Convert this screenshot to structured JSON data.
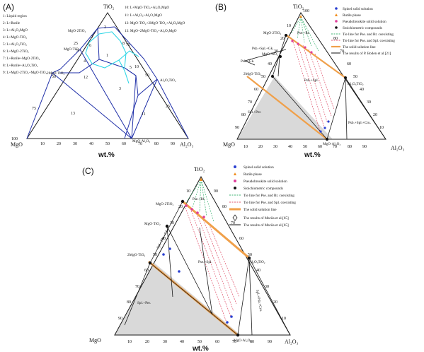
{
  "panels": {
    "a": {
      "label": "(A)",
      "vertices": {
        "top": "TiO₂",
        "left": "MgO",
        "right": "Al₂O₃"
      },
      "axis_unit": "wt.%",
      "bottom_ticks": [
        "10",
        "20",
        "30",
        "40",
        "50",
        "60",
        "70",
        "80",
        "90"
      ],
      "left_ticks": [
        "25",
        "50",
        "75",
        "100"
      ],
      "right_ticks": [
        "25",
        "50",
        "75"
      ],
      "legend_left": [
        "1: Liquid region",
        "2: L+Rutile",
        "3: L+Al₂O₃MgO",
        "4: L+MgO·TiO₂",
        "5: L+Al₂O₃TiO₂",
        "6: L+MgO·2TiO₂",
        "7: L+Rutile+MgO·2TiO₂",
        "8: L+Rutile+Al₂O₃TiO₂",
        "9: L+MgO·2TiO₂+MgO·TiO₂"
      ],
      "legend_right": [
        "10: L+MgO·TiO₂+Al₂O₃MgO",
        "11: L+Al₂O₃+Al₂O₃MgO",
        "12: MgO·TiO₂+2MgO·TiO₂+Al₂O₃MgO",
        "13: MgO+2MgO·TiO₂+Al₂O₃MgO"
      ],
      "region_numbers": [
        "1",
        "2",
        "3",
        "4",
        "5",
        "6",
        "7",
        "8",
        "9",
        "10",
        "11",
        "12",
        "13"
      ],
      "compound_labels": [
        "MgO·2TiO₂",
        "MgO·TiO₂",
        "2MgO·TiO₂",
        "Al₂O₃TiO₂",
        "MgO·Al₂O₃"
      ]
    },
    "b": {
      "label": "(B)",
      "vertices": {
        "top": "TiO₂",
        "left": "MgO",
        "right": "Al₂O₃"
      },
      "axis_unit": "wt.%",
      "top_tick": "100",
      "bottom_ticks": [
        "10",
        "20",
        "30",
        "40",
        "50",
        "60",
        "70",
        "80",
        "90"
      ],
      "left_ticks": [
        "10",
        "20",
        "30",
        "40",
        "50",
        "60",
        "70",
        "80",
        "90"
      ],
      "right_ticks": [
        "10",
        "20",
        "30",
        "40",
        "50",
        "60",
        "70",
        "80"
      ],
      "legend": [
        "Spinel solid solution",
        "Rutile phase",
        "Pseudobrookite solid solution",
        "Stoichiometric compounds",
        "Tie line for Pse. and Rt. coexisting",
        "Tie line for Pse. and Spl. coexisting",
        "The solid solution line",
        "The results of P. Boden et al.[21]"
      ],
      "regions": [
        "Pse.+Rt.",
        "Psb.+Spl.+Gk.",
        "Psb.+Gk.",
        "Psb.+Spl.",
        "Spl.+Per.",
        "Psb.+Spl.+Cru."
      ],
      "compound_labels": [
        "MgO·2TiO₂",
        "MgO·TiO₂",
        "2MgO·TiO₂",
        "Al₂O₃TiO₂",
        "MgO·Al₂O₃"
      ]
    },
    "c": {
      "label": "(C)",
      "vertices": {
        "top": "TiO₂",
        "left": "MgO",
        "right": "Al₂O₃"
      },
      "axis_unit": "wt.%",
      "bottom_ticks": [
        "10",
        "20",
        "30",
        "40",
        "50",
        "60",
        "70",
        "80",
        "90"
      ],
      "left_ticks": [
        "10",
        "20",
        "30",
        "40",
        "50",
        "60",
        "70",
        "80",
        "90"
      ],
      "right_ticks": [
        "10",
        "20",
        "30",
        "40",
        "50",
        "60",
        "70",
        "80",
        "90"
      ],
      "legend": [
        "Spinel solid solution",
        "Rutile phase",
        "Pseudobrookite solid solution",
        "Stoichiometric compounds",
        "Tie line for Pse. and Rt. coexisting",
        "Tie line for Pse. and Spl. coexisting",
        "The solid solution line",
        "The results of Mariia et al.[65]",
        "The results of Mariia et al.[65]"
      ],
      "regions": [
        "Pse.+Rt.",
        "Spl.+Pse.+Gk.",
        "Pse.+Spl.",
        "Spl.+Per.",
        "Spl.+Psb.+Cru."
      ],
      "compound_labels": [
        "MgO·2TiO₂",
        "MgO·TiO₂",
        "2MgO·TiO₂",
        "Al₂O₃TiO₂",
        "MgO·Al₂O₃"
      ]
    }
  },
  "colors": {
    "frame": "#1a1a1a",
    "region_line": "#1f2fa8",
    "liquid_boundary": "#2fd6e6",
    "gray_fill": "#d9d9d9",
    "tie_rt": "#3cb371",
    "tie_spl": "#e0506a",
    "solid_solution": "#f0a04a",
    "spinel": "#2a3fd0",
    "rutile": "#f08c1a",
    "pseudobrookite": "#e03c9a"
  }
}
